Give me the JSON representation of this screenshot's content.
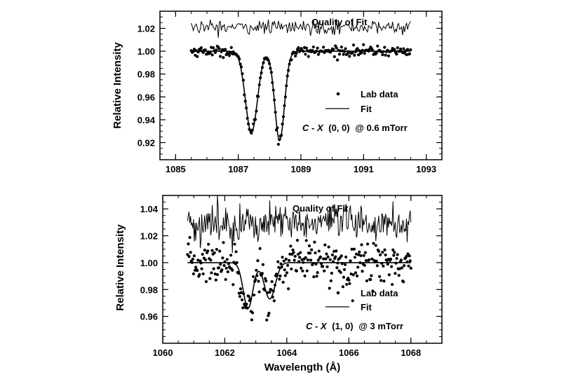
{
  "chart_data": [
    {
      "type": "scatter",
      "xlim": [
        1084.5,
        1093.5
      ],
      "ylim": [
        0.905,
        1.035
      ],
      "xticks": [
        1085,
        1087,
        1089,
        1091,
        1093
      ],
      "xtick_labels": [
        "1085",
        "1087",
        "1089",
        "1091",
        "1093"
      ],
      "yticks": [
        0.92,
        0.94,
        0.96,
        0.98,
        1.0,
        1.02
      ],
      "ytick_labels": [
        "0.92",
        "0.94",
        "0.96",
        "0.98",
        "1.00",
        "1.02"
      ],
      "ylabel": "Relative Intensity",
      "xlabel": "",
      "quality_label": "Quality of Fit",
      "legend": [
        "Lab data",
        "Fit"
      ],
      "annotation": {
        "prefix": "C - X",
        "band": "(0, 0)",
        "suffix": "@ 0.6 mTorr"
      },
      "data_range": [
        1085.5,
        1092.5
      ],
      "lines": [
        {
          "center": 1087.42,
          "depth": 0.071,
          "width": 0.27
        },
        {
          "center": 1088.32,
          "depth": 0.078,
          "width": 0.22
        }
      ],
      "quality_offset": 1.021,
      "quality_noise": 0.003,
      "data_noise": 0.0022,
      "n_points": 220
    },
    {
      "type": "scatter",
      "xlim": [
        1060,
        1069
      ],
      "ylim": [
        0.94,
        1.05
      ],
      "xticks": [
        1060,
        1062,
        1064,
        1066,
        1068
      ],
      "xtick_labels": [
        "1060",
        "1062",
        "1064",
        "1066",
        "1068"
      ],
      "yticks": [
        0.96,
        0.98,
        1.0,
        1.02,
        1.04
      ],
      "ytick_labels": [
        "0.96",
        "0.98",
        "1.00",
        "1.02",
        "1.04"
      ],
      "ylabel": "Relative Intensity",
      "xlabel": "Wavelength (Å)",
      "quality_label": "Quality of Fit",
      "legend": [
        "Lab data",
        "Fit"
      ],
      "annotation": {
        "prefix": "C - X",
        "band": "(1, 0)",
        "suffix": "@ 3 mTorr"
      },
      "data_range": [
        1060.8,
        1068
      ],
      "lines": [
        {
          "center": 1062.75,
          "depth": 0.034,
          "width": 0.22
        },
        {
          "center": 1063.45,
          "depth": 0.027,
          "width": 0.25
        }
      ],
      "quality_offset": 1.029,
      "quality_noise": 0.007,
      "data_noise": 0.008,
      "n_points": 300
    }
  ]
}
